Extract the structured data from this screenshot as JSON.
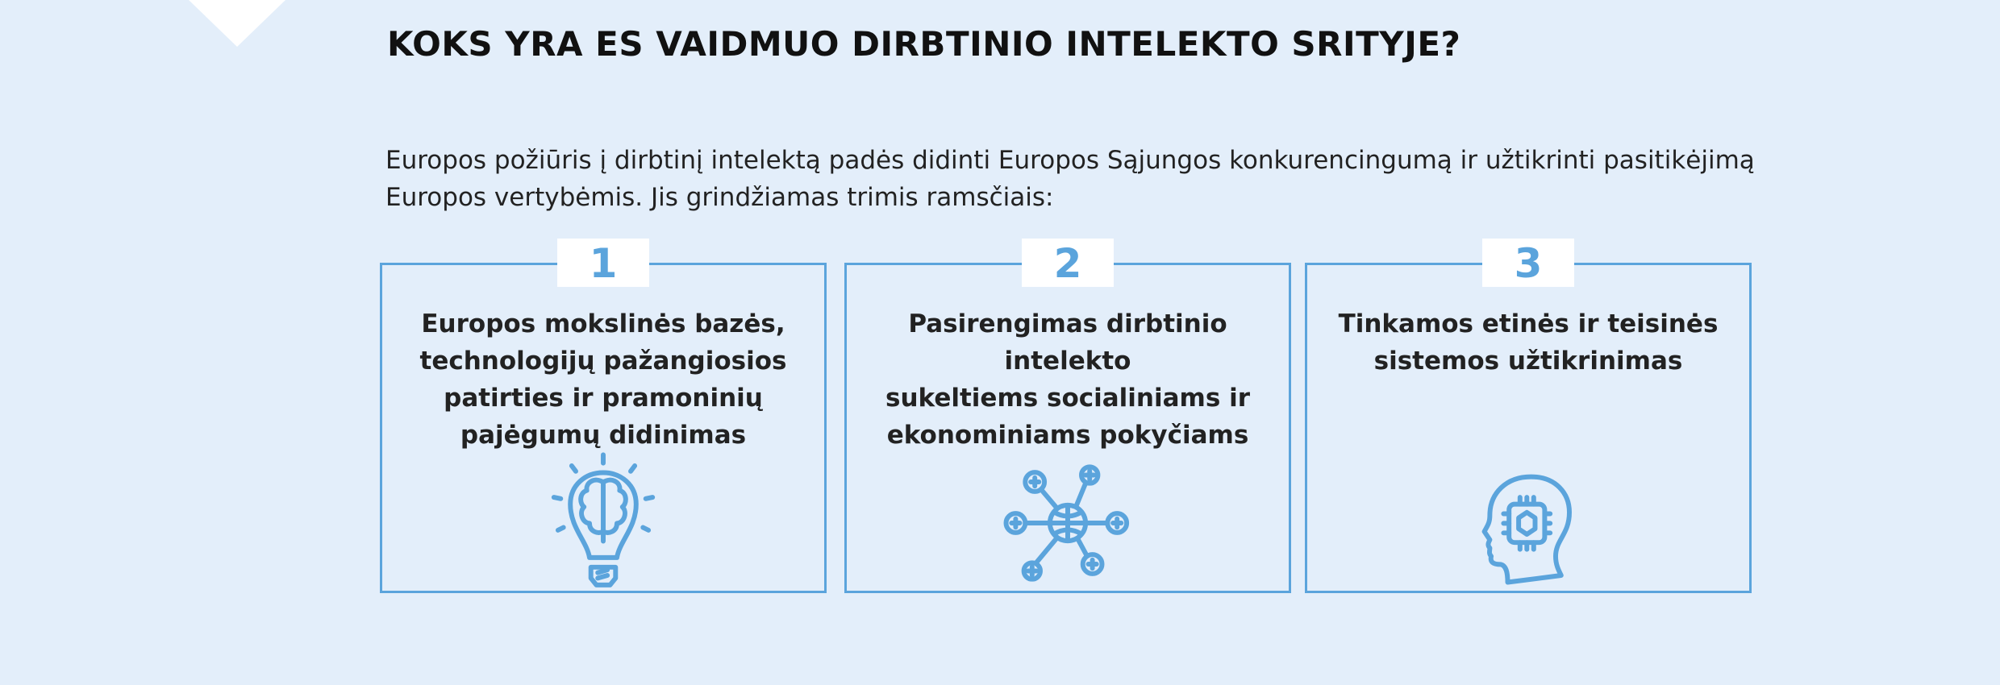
{
  "title": "KOKS YRA ES VAIDMUO DIRBTINIO INTELEKTO SRITYJE?",
  "intro": {
    "line1": "Europos požiūris į dirbtinį intelektą padės didinti Europos Sąjungos konkurencingumą ir užtikrinti pasitikėjimą",
    "line2": "Europos vertybėmis. Jis grindžiamas trimis ramsčiais:"
  },
  "accent_color": "#5ba4dc",
  "background_color": "#e3eefa",
  "pillars": [
    {
      "number": "1",
      "lines": [
        "Europos mokslinės bazės,",
        "technologijų pažangiosios",
        "patirties ir pramoninių",
        "pajėgumų didinimas"
      ],
      "icon": "lightbulb-brain-icon"
    },
    {
      "number": "2",
      "lines": [
        "Pasirengimas dirbtinio intelekto",
        "sukeltiems socialiniams ir",
        "ekonominiams pokyčiams"
      ],
      "icon": "network-globe-icon"
    },
    {
      "number": "3",
      "lines": [
        "Tinkamos etinės ir teisinės",
        "sistemos užtikrinimas"
      ],
      "icon": "head-chip-icon"
    }
  ]
}
